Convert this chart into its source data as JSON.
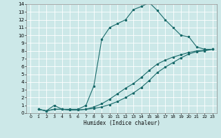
{
  "xlabel": "Humidex (Indice chaleur)",
  "bg_color": "#cce8e8",
  "grid_color": "#ffffff",
  "line_color": "#1a6b6b",
  "xlim": [
    -0.5,
    23.5
  ],
  "ylim": [
    0,
    14
  ],
  "xticks": [
    0,
    1,
    2,
    3,
    4,
    5,
    6,
    7,
    8,
    9,
    10,
    11,
    12,
    13,
    14,
    15,
    16,
    17,
    18,
    19,
    20,
    21,
    22,
    23
  ],
  "yticks": [
    0,
    1,
    2,
    3,
    4,
    5,
    6,
    7,
    8,
    9,
    10,
    11,
    12,
    13,
    14
  ],
  "line1_x": [
    1,
    2,
    3,
    4,
    5,
    6,
    7,
    8,
    9,
    10,
    11,
    12,
    13,
    14,
    15,
    16,
    17,
    18,
    19,
    20,
    21,
    22,
    23
  ],
  "line1_y": [
    0.5,
    0.3,
    1.0,
    0.5,
    0.5,
    0.5,
    1.0,
    3.5,
    9.5,
    11.0,
    11.5,
    12.0,
    13.3,
    13.7,
    14.2,
    13.2,
    12.0,
    11.0,
    10.0,
    9.8,
    8.5,
    8.2,
    8.2
  ],
  "line2_x": [
    1,
    2,
    3,
    4,
    5,
    6,
    7,
    8,
    9,
    10,
    11,
    12,
    13,
    14,
    15,
    16,
    17,
    18,
    19,
    20,
    21,
    22,
    23
  ],
  "line2_y": [
    0.5,
    0.3,
    0.5,
    0.5,
    0.4,
    0.4,
    0.5,
    0.6,
    0.8,
    1.1,
    1.5,
    2.0,
    2.6,
    3.3,
    4.2,
    5.2,
    5.9,
    6.5,
    7.1,
    7.6,
    7.9,
    8.0,
    8.2
  ],
  "line3_x": [
    1,
    2,
    3,
    4,
    5,
    6,
    7,
    8,
    9,
    10,
    11,
    12,
    13,
    14,
    15,
    16,
    17,
    18,
    19,
    20,
    21,
    22,
    23
  ],
  "line3_y": [
    0.5,
    0.3,
    0.5,
    0.5,
    0.4,
    0.4,
    0.5,
    0.8,
    1.2,
    1.8,
    2.5,
    3.2,
    3.8,
    4.6,
    5.5,
    6.3,
    6.8,
    7.2,
    7.5,
    7.8,
    8.0,
    8.1,
    8.2
  ]
}
